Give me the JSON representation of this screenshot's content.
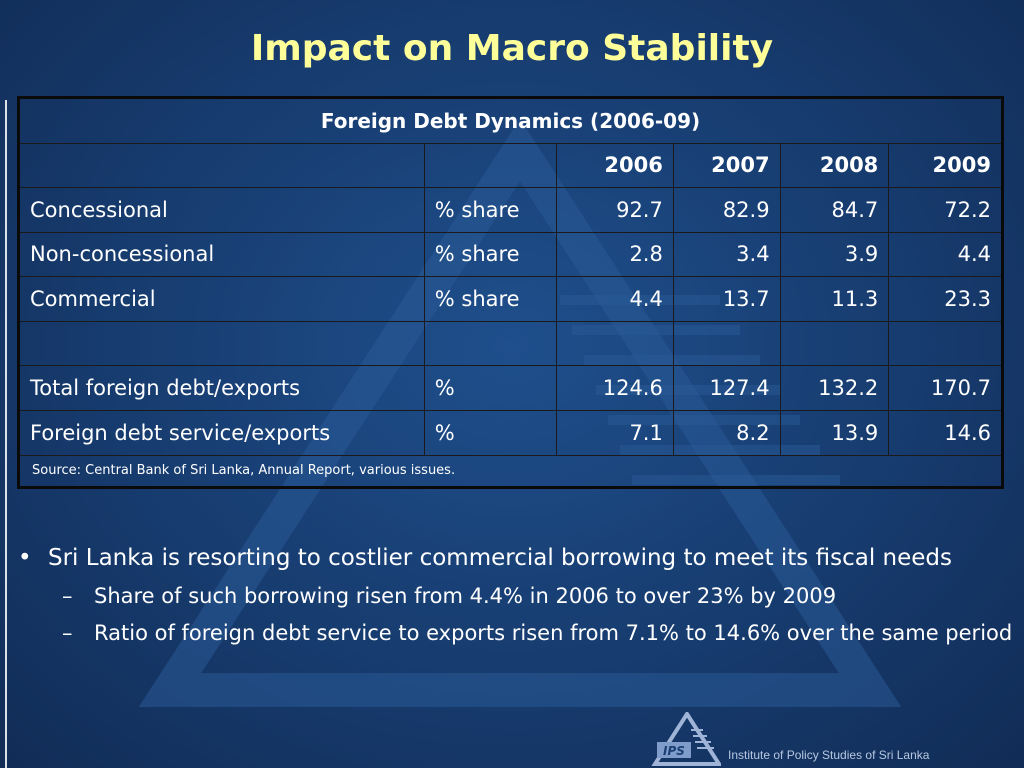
{
  "slide": {
    "title": "Impact on Macro Stability"
  },
  "table": {
    "caption": "Foreign Debt Dynamics (2006-09)",
    "years": [
      "2006",
      "2007",
      "2008",
      "2009"
    ],
    "rows": [
      {
        "label": "Concessional",
        "unit": "% share",
        "values": [
          "92.7",
          "82.9",
          "84.7",
          "72.2"
        ]
      },
      {
        "label": "Non-concessional",
        "unit": "% share",
        "values": [
          "2.8",
          "3.4",
          "3.9",
          "4.4"
        ]
      },
      {
        "label": "Commercial",
        "unit": "% share",
        "values": [
          "4.4",
          "13.7",
          "11.3",
          "23.3"
        ]
      },
      {
        "label": "",
        "unit": "",
        "values": [
          "",
          "",
          "",
          ""
        ]
      },
      {
        "label": "Total foreign debt/exports",
        "unit": "%",
        "values": [
          "124.6",
          "127.4",
          "132.2",
          "170.7"
        ]
      },
      {
        "label": "Foreign debt service/exports",
        "unit": "%",
        "values": [
          "7.1",
          "8.2",
          "13.9",
          "14.6"
        ]
      }
    ],
    "source": "Source: Central Bank of Sri Lanka, Annual Report, various issues."
  },
  "bullets": {
    "main_mark": "•",
    "main": "Sri Lanka is resorting to costlier commercial borrowing to meet its fiscal needs",
    "sub_mark": "–",
    "subs": [
      "Share of such borrowing risen from 4.4% in 2006 to over 23% by 2009",
      "Ratio of foreign debt service to exports risen from 7.1% to 14.6% over the same period"
    ]
  },
  "footer": {
    "logo_text": "IPS",
    "org": "Institute of Policy Studies of Sri Lanka"
  },
  "colors": {
    "title": "#ffff99",
    "background": "#183f74",
    "text": "#ffffff"
  }
}
